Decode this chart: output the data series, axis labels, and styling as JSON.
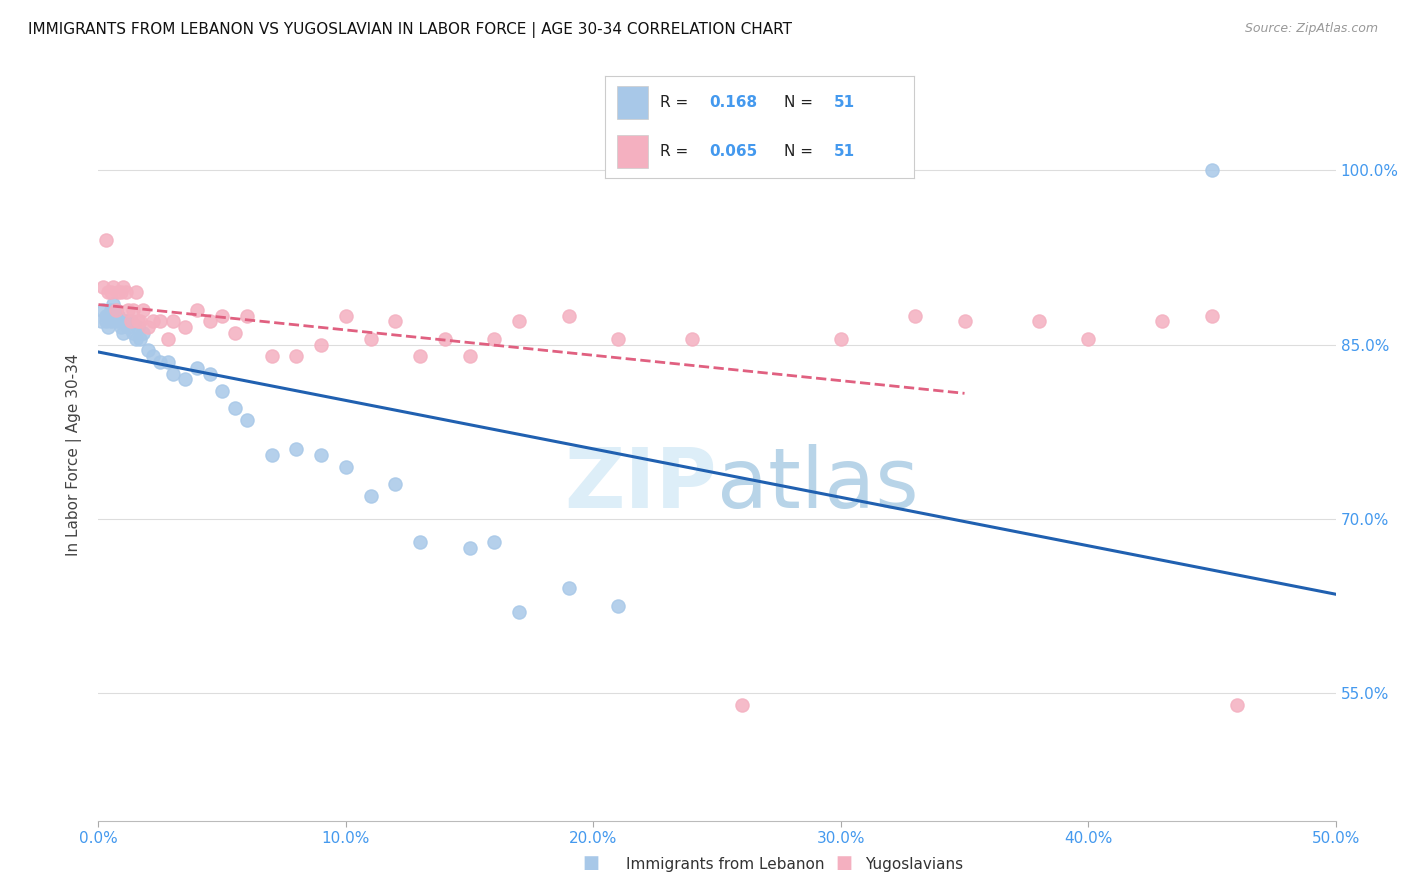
{
  "title": "IMMIGRANTS FROM LEBANON VS YUGOSLAVIAN IN LABOR FORCE | AGE 30-34 CORRELATION CHART",
  "source": "Source: ZipAtlas.com",
  "ylabel": "In Labor Force | Age 30-34",
  "ytick_labels": [
    "55.0%",
    "70.0%",
    "85.0%",
    "100.0%"
  ],
  "ytick_values": [
    0.55,
    0.7,
    0.85,
    1.0
  ],
  "xtick_values": [
    0.0,
    0.1,
    0.2,
    0.3,
    0.4,
    0.5
  ],
  "xtick_labels": [
    "0.0%",
    "10.0%",
    "20.0%",
    "30.0%",
    "40.0%",
    "50.0%"
  ],
  "xlim": [
    0.0,
    0.5
  ],
  "ylim": [
    0.44,
    1.07
  ],
  "legend_R_lebanon": "0.168",
  "legend_N_lebanon": "51",
  "legend_R_yugo": "0.065",
  "legend_N_yugo": "51",
  "color_lebanon": "#a8c8e8",
  "color_yugo": "#f4b0c0",
  "color_trendline_lebanon": "#2060b0",
  "color_trendline_yugo": "#e06080",
  "color_axis_labels": "#4499ee",
  "color_title": "#111111",
  "color_source": "#999999",
  "lebanon_x": [
    0.001,
    0.002,
    0.003,
    0.003,
    0.004,
    0.004,
    0.005,
    0.005,
    0.006,
    0.006,
    0.007,
    0.007,
    0.008,
    0.008,
    0.009,
    0.009,
    0.01,
    0.01,
    0.011,
    0.011,
    0.012,
    0.013,
    0.014,
    0.015,
    0.016,
    0.017,
    0.018,
    0.02,
    0.022,
    0.025,
    0.028,
    0.03,
    0.035,
    0.04,
    0.045,
    0.05,
    0.055,
    0.06,
    0.07,
    0.08,
    0.09,
    0.1,
    0.11,
    0.12,
    0.13,
    0.15,
    0.16,
    0.17,
    0.19,
    0.21,
    0.45
  ],
  "lebanon_y": [
    0.87,
    0.88,
    0.875,
    0.87,
    0.875,
    0.865,
    0.87,
    0.88,
    0.875,
    0.885,
    0.87,
    0.88,
    0.875,
    0.875,
    0.87,
    0.865,
    0.87,
    0.86,
    0.87,
    0.87,
    0.865,
    0.87,
    0.86,
    0.855,
    0.865,
    0.855,
    0.86,
    0.845,
    0.84,
    0.835,
    0.835,
    0.825,
    0.82,
    0.83,
    0.825,
    0.81,
    0.795,
    0.785,
    0.755,
    0.76,
    0.755,
    0.745,
    0.72,
    0.73,
    0.68,
    0.675,
    0.68,
    0.62,
    0.64,
    0.625,
    1.0
  ],
  "yugo_x": [
    0.002,
    0.003,
    0.004,
    0.005,
    0.006,
    0.007,
    0.008,
    0.009,
    0.01,
    0.011,
    0.012,
    0.013,
    0.014,
    0.015,
    0.016,
    0.017,
    0.018,
    0.02,
    0.022,
    0.025,
    0.028,
    0.03,
    0.035,
    0.04,
    0.045,
    0.05,
    0.055,
    0.06,
    0.07,
    0.08,
    0.09,
    0.1,
    0.11,
    0.12,
    0.13,
    0.14,
    0.15,
    0.16,
    0.17,
    0.19,
    0.21,
    0.24,
    0.26,
    0.3,
    0.33,
    0.35,
    0.38,
    0.4,
    0.43,
    0.45,
    0.46
  ],
  "yugo_y": [
    0.9,
    0.94,
    0.895,
    0.895,
    0.9,
    0.88,
    0.895,
    0.895,
    0.9,
    0.895,
    0.88,
    0.87,
    0.88,
    0.895,
    0.87,
    0.87,
    0.88,
    0.865,
    0.87,
    0.87,
    0.855,
    0.87,
    0.865,
    0.88,
    0.87,
    0.875,
    0.86,
    0.875,
    0.84,
    0.84,
    0.85,
    0.875,
    0.855,
    0.87,
    0.84,
    0.855,
    0.84,
    0.855,
    0.87,
    0.875,
    0.855,
    0.855,
    0.54,
    0.855,
    0.875,
    0.87,
    0.87,
    0.855,
    0.87,
    0.875,
    0.54
  ],
  "trendline_yugo_xmax": 0.35
}
